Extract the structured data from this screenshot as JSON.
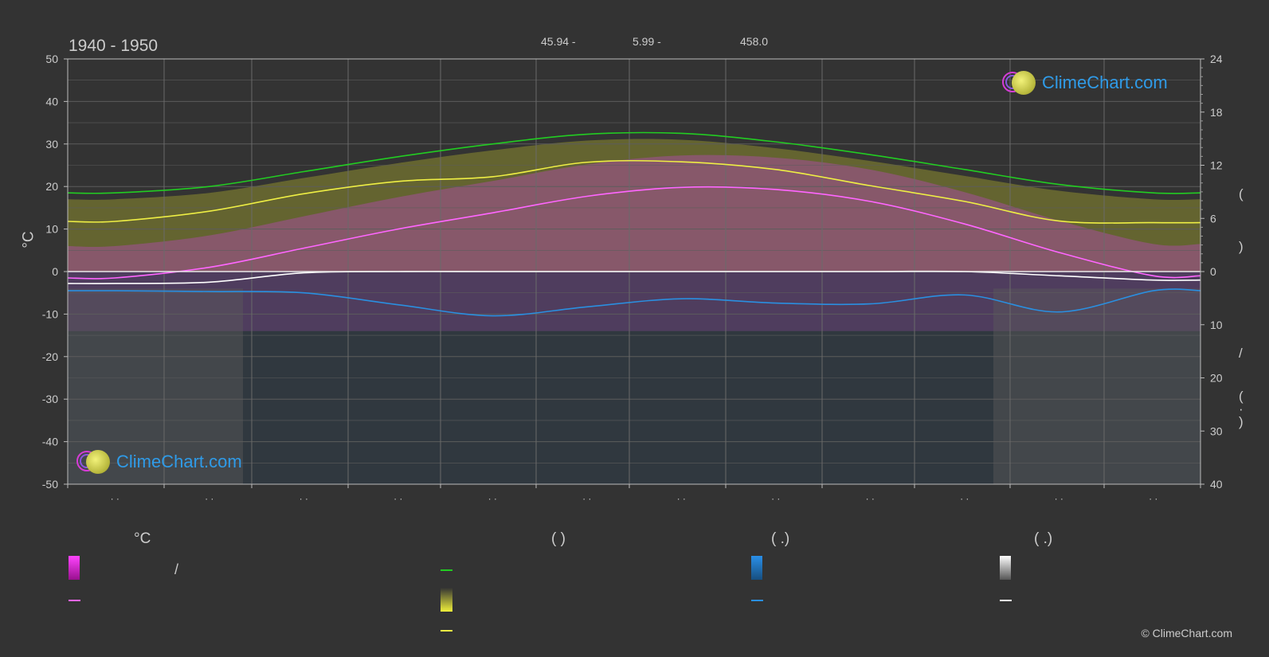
{
  "header": {
    "period": "1940 - 1950",
    "stats": [
      "45.94 -",
      "5.99 -",
      "458.0"
    ]
  },
  "logo": {
    "text": "ClimeChart.com"
  },
  "copyright": "© ClimeChart.com",
  "axes": {
    "left_unit": "°C",
    "right_label_chars": [
      "(",
      ")",
      "/",
      "(",
      "·",
      ")"
    ]
  },
  "legend": {
    "headers": [
      "°C",
      "(          )",
      "(   .)",
      "(   .)"
    ],
    "slash_text": "/",
    "colors": {
      "temp_range": "#e020e0",
      "temp_mean": "#ff66ff",
      "daylight": "#22cc22",
      "sunshine_range": "#e8e83a",
      "sunshine_mean": "#eeee44",
      "rain_range": "#2288dd",
      "rain_mean": "#2a8fe0",
      "snow_range": "#dddddd",
      "snow_mean": "#ffffff"
    }
  },
  "chart_data": {
    "type": "line",
    "x": [
      "1",
      "2",
      "3",
      "4",
      "5",
      "6",
      "7",
      "8",
      "9",
      "10",
      "11",
      "12"
    ],
    "x_tick_labels": [
      "· ·",
      "· ·",
      "· ·",
      "· ·",
      "· ·",
      "· ·",
      "· ·",
      "· ·",
      "· ·",
      "· ·",
      "· ·",
      "· ·"
    ],
    "ylim_left": [
      -50,
      50
    ],
    "yticks_left": [
      50,
      40,
      30,
      20,
      10,
      0,
      -10,
      -20,
      -30,
      -40,
      -50
    ],
    "yticks_left_labels": [
      "50",
      "40",
      "30",
      "20",
      "10",
      "0",
      "-10",
      "-20",
      "-30",
      "-40",
      "-50"
    ],
    "right_upper_ticks": [
      "24",
      "18",
      "12",
      "6",
      "0"
    ],
    "right_lower_ticks": [
      "10",
      "20",
      "30",
      "40"
    ],
    "grid": true,
    "series": [
      {
        "key": "daylight",
        "values": [
          18.5,
          20.0,
          23.5,
          27.0,
          30.0,
          32.3,
          32.5,
          30.5,
          27.5,
          24.0,
          20.5,
          18.5
        ]
      },
      {
        "key": "sunshine_mean",
        "values": [
          11.8,
          14.2,
          18.3,
          21.2,
          22.3,
          25.7,
          25.8,
          24.0,
          20.2,
          16.5,
          11.9,
          11.5
        ]
      },
      {
        "key": "temp_mean",
        "values": [
          -1.5,
          1.0,
          5.5,
          10.0,
          13.8,
          17.7,
          19.8,
          19.3,
          16.5,
          11.2,
          4.5,
          -1.0
        ]
      },
      {
        "key": "snow_mean",
        "values": [
          -2.8,
          -2.5,
          -0.3,
          0.0,
          0.0,
          0.0,
          0.0,
          0.0,
          0.0,
          0.0,
          -1.0,
          -2.0
        ]
      },
      {
        "key": "rain_mean",
        "values": [
          -4.5,
          -4.7,
          -5.0,
          -7.8,
          -10.4,
          -8.3,
          -6.4,
          -7.4,
          -7.6,
          -5.5,
          -9.5,
          -4.5
        ]
      }
    ]
  }
}
